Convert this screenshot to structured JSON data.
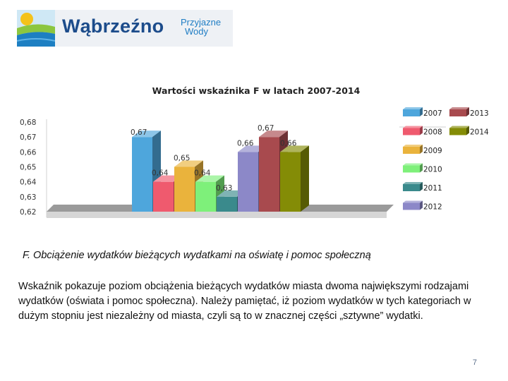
{
  "header": {
    "logo_title": "Wąbrzeźno",
    "logo_subtitle_line1": "Przyjazne",
    "logo_subtitle_line2": "Wody"
  },
  "chart_data": {
    "type": "bar",
    "title": "Wartości wskaźnika F w latach 2007-2014",
    "categories": [
      "2007",
      "2008",
      "2009",
      "2010",
      "2011",
      "2012",
      "2013",
      "2014"
    ],
    "values": [
      0.67,
      0.64,
      0.65,
      0.64,
      0.63,
      0.66,
      0.67,
      0.66
    ],
    "value_labels": [
      "0,67",
      "0,64",
      "0,65",
      "0,64",
      "0,63",
      "0,66",
      "0,67",
      "0,66"
    ],
    "colors": [
      "#4ea6dc",
      "#ef5a6e",
      "#eab33c",
      "#7ef07a",
      "#3a8a8c",
      "#8c88c8",
      "#a84a4e",
      "#848c06"
    ],
    "y_ticks": [
      "0,62",
      "0,63",
      "0,64",
      "0,65",
      "0,66",
      "0,67",
      "0,68"
    ],
    "ylim": [
      0.62,
      0.68
    ],
    "legend_position": "right",
    "grid": false,
    "style": "3d"
  },
  "content": {
    "section_heading": "F. Obciążenie wydatków bieżących wydatkami na oświatę i pomoc społeczną",
    "paragraph": "Wskaźnik pokazuje poziom obciążenia bieżących wydatków miasta dwoma największymi rodzajami wydatków (oświata i pomoc społeczna). Należy pamiętać, iż poziom wydatków w tych kategoriach w dużym stopniu jest niezależny od miasta, czyli są to w znacznej części „sztywne” wydatki.",
    "page_number": "7"
  }
}
